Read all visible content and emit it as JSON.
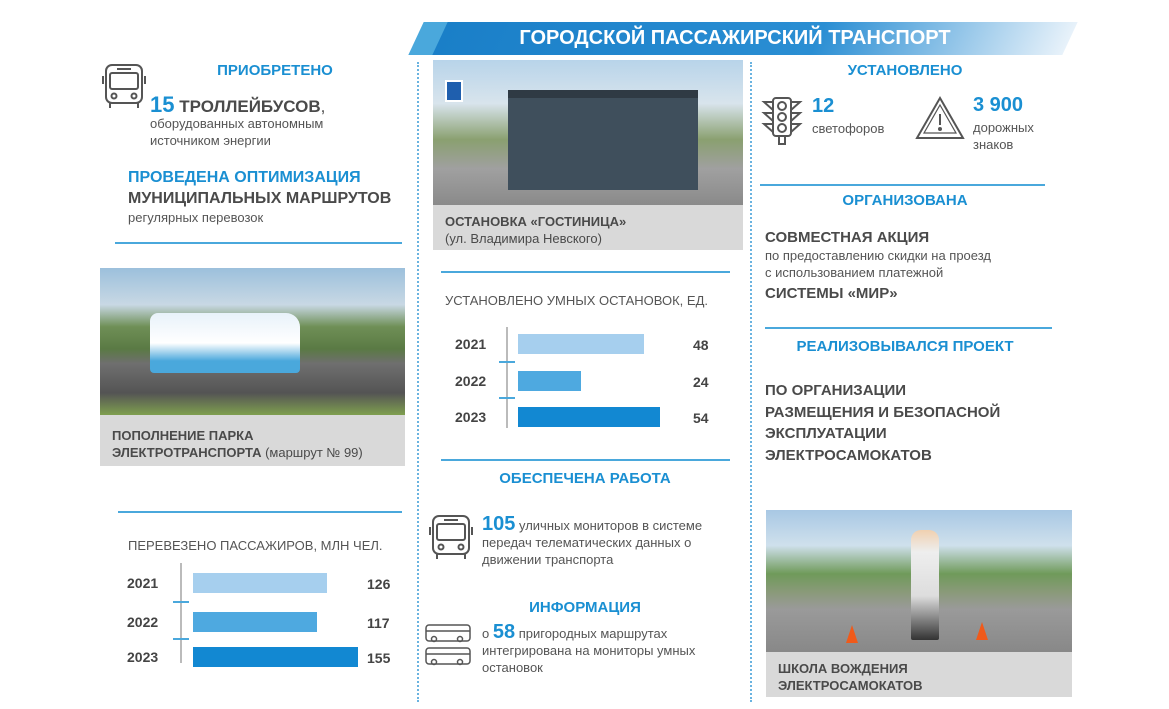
{
  "title": "ГОРОДСКОЙ ПАССАЖИРСКИЙ ТРАНСПОРТ",
  "colors": {
    "accent": "#1a8fd2",
    "bar_2021": "#a6cfee",
    "bar_2022": "#4ea9e0",
    "bar_2023": "#1288d2"
  },
  "left": {
    "acquired_heading": "ПРИОБРЕТЕНО",
    "trolley_number": "15",
    "trolley_label": "ТРОЛЛЕЙБУСОВ",
    "trolley_comma": ",",
    "trolley_desc1": "оборудованных автономным",
    "trolley_desc2": "источником энергии",
    "opt_heading": "ПРОВЕДЕНА ОПТИМИЗАЦИЯ",
    "opt_main": "МУНИЦИПАЛЬНЫХ МАРШРУТОВ",
    "opt_sub": "регулярных перевозок",
    "photo_caption_bold": "ПОПОЛНЕНИЕ ПАРКА ЭЛЕКТРОТРАНСПОРТА",
    "photo_caption_rest": " (маршрут № 99)",
    "icon": "bus-icon"
  },
  "middle": {
    "photo_caption_bold": "ОСТАНОВКА «ГОСТИНИЦА»",
    "photo_caption_rest": "(ул. Владимира Невского)",
    "work_heading": "ОБЕСПЕЧЕНА РАБОТА",
    "monitors_number": "105",
    "monitors_text": " уличных мониторов в системе передач телематических данных о движении транспорта",
    "info_heading": "ИНФОРМАЦИЯ",
    "info_prefix": "о ",
    "info_number": "58",
    "info_text": " пригородных маршрутах интегрирована на мониторы умных остановок"
  },
  "right": {
    "installed_heading": "УСТАНОВЛЕНО",
    "lights_number": "12",
    "lights_label": "светофоров",
    "signs_number": "3 900",
    "signs_label1": "дорожных",
    "signs_label2": "знаков",
    "org_heading": "ОРГАНИЗОВАНА",
    "org_main": "СОВМЕСТНАЯ АКЦИЯ",
    "org_desc1": "по предоставлению скидки на проезд",
    "org_desc2": "с использованием платежной",
    "org_main2": "СИСТЕМЫ «МИР»",
    "proj_heading": "РЕАЛИЗОВЫВАЛСЯ ПРОЕКТ",
    "proj_lines": [
      "ПО ОРГАНИЗАЦИИ",
      "РАЗМЕЩЕНИЯ И БЕЗОПАСНОЙ",
      "ЭКСПЛУАТАЦИИ",
      "ЭЛЕКТРОСАМОКАТОВ"
    ],
    "photo_caption": "ШКОЛА ВОЖДЕНИЯ ЭЛЕКТРОСАМОКАТОВ"
  },
  "chart_data": [
    {
      "type": "bar",
      "orientation": "horizontal",
      "title": "ПЕРЕВЕЗЕНО ПАССАЖИРОВ, МЛН ЧЕЛ.",
      "categories": [
        "2021",
        "2022",
        "2023"
      ],
      "values": [
        126,
        117,
        155
      ],
      "labels": [
        "126",
        "117",
        "155"
      ]
    },
    {
      "type": "bar",
      "orientation": "horizontal",
      "title": "УСТАНОВЛЕНО УМНЫХ ОСТАНОВОК, ЕД.",
      "categories": [
        "2021",
        "2022",
        "2023"
      ],
      "values": [
        48,
        24,
        54
      ],
      "labels": [
        "48",
        "24",
        "54"
      ]
    }
  ]
}
